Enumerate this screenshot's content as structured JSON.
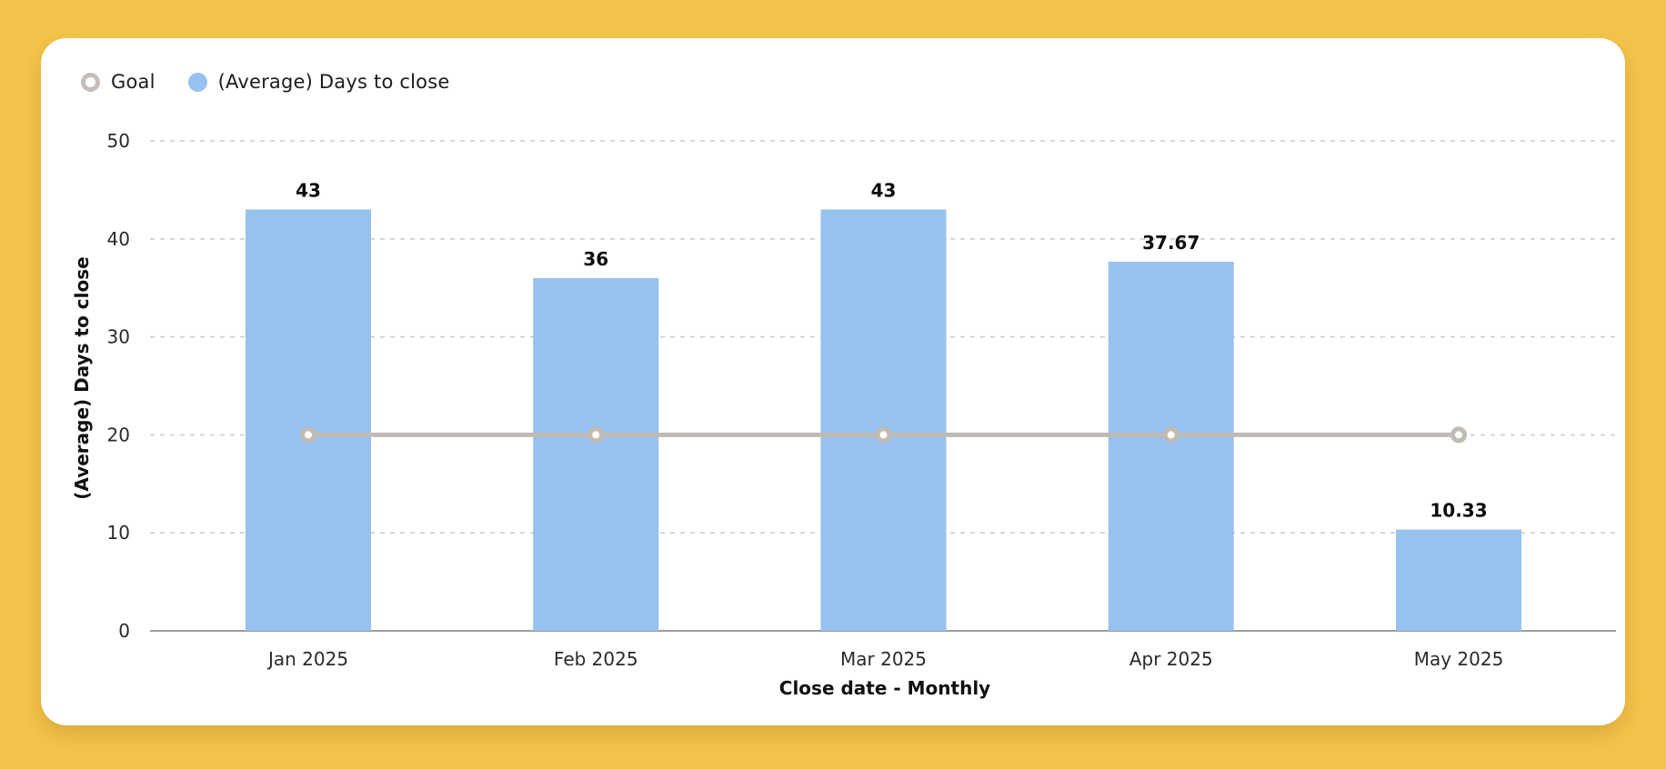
{
  "page": {
    "background_color": "#f3c34a",
    "card_color": "#ffffff"
  },
  "legend": {
    "items": [
      {
        "label": "Goal",
        "marker": "ring",
        "color": "#c4bfba"
      },
      {
        "label": "(Average) Days to close",
        "marker": "dot",
        "color": "#97c1ee"
      }
    ]
  },
  "chart_data": {
    "type": "bar",
    "title": "",
    "categories": [
      "Jan 2025",
      "Feb 2025",
      "Mar 2025",
      "Apr 2025",
      "May 2025"
    ],
    "series": [
      {
        "name": "(Average) Days to close",
        "type": "bar",
        "values": [
          43,
          36,
          43,
          37.67,
          10.33
        ],
        "labels": [
          "43",
          "36",
          "43",
          "37.67",
          "10.33"
        ],
        "color": "#97c1ee"
      },
      {
        "name": "Goal",
        "type": "line",
        "values": [
          20,
          20,
          20,
          20,
          20
        ],
        "color": "#c0bbb5",
        "marker": "open-circle"
      }
    ],
    "xlabel": "Close date - Monthly",
    "ylabel": "(Average) Days to close",
    "ylim": [
      0,
      50
    ],
    "yticks": [
      0,
      10,
      20,
      30,
      40,
      50
    ],
    "grid": "horizontal-dashed",
    "grid_color": "#cccccc",
    "axis_line_color": "#9d9d9d",
    "legend_position": "top-left"
  }
}
